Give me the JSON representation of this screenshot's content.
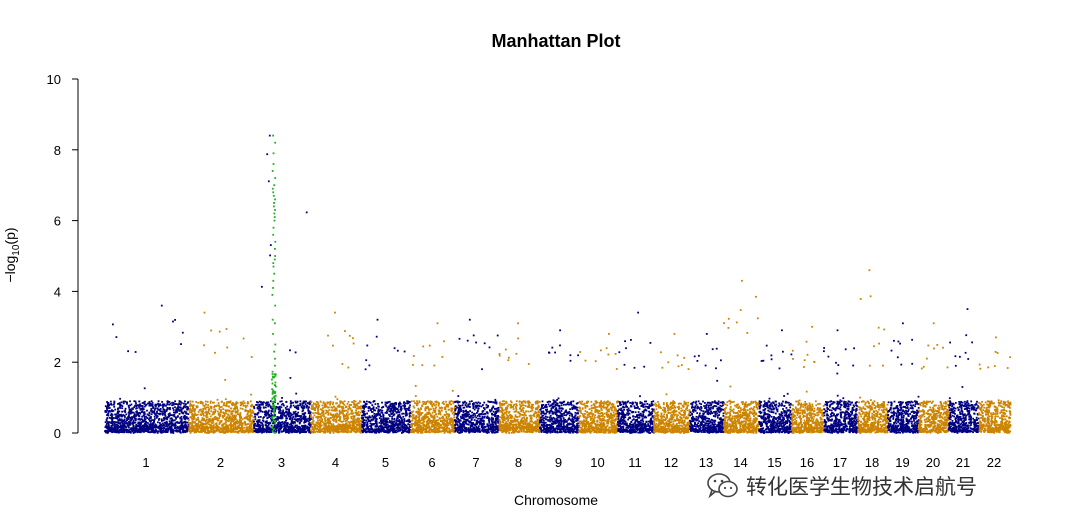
{
  "chart_data": {
    "type": "scatter",
    "title": "Manhattan Plot",
    "xlabel": "Chromosome",
    "ylabel": "-log10(p)",
    "ylim": [
      0,
      10
    ],
    "yticks": [
      0,
      2,
      4,
      6,
      8,
      10
    ],
    "grid": false,
    "legend": "none",
    "colors": {
      "odd_chromosomes": "#000080",
      "even_chromosomes": "#CC8400",
      "highlighted_snps": "#22B022"
    },
    "chromosomes": [
      "1",
      "2",
      "3",
      "4",
      "5",
      "6",
      "7",
      "8",
      "9",
      "10",
      "11",
      "12",
      "13",
      "14",
      "15",
      "16",
      "17",
      "18",
      "19",
      "20",
      "21",
      "22"
    ],
    "peak_max_per_chromosome": [
      3.6,
      3.4,
      8.4,
      3.4,
      3.2,
      3.1,
      3.2,
      3.1,
      2.9,
      2.8,
      3.4,
      2.8,
      2.8,
      4.3,
      2.9,
      3.0,
      2.9,
      4.6,
      3.1,
      3.1,
      3.5,
      2.7
    ],
    "highlighted_region": {
      "chromosome": "3",
      "max": 8.4,
      "values": [
        8.4,
        8.2,
        7.9,
        7.6,
        7.4,
        7.2,
        7.0,
        6.9,
        6.8,
        6.7,
        6.6,
        6.5,
        6.4,
        6.3,
        6.2,
        6.1,
        6.0,
        5.8,
        5.6,
        5.4,
        5.2,
        5.0,
        4.9,
        4.8,
        4.7,
        4.5,
        4.3,
        4.1,
        3.9,
        3.6,
        3.2,
        3.1,
        2.8,
        2.5,
        2.3,
        2.1,
        1.9
      ]
    }
  },
  "watermark": {
    "text": "转化医学生物技术启航号",
    "icon": "wechat-icon"
  }
}
